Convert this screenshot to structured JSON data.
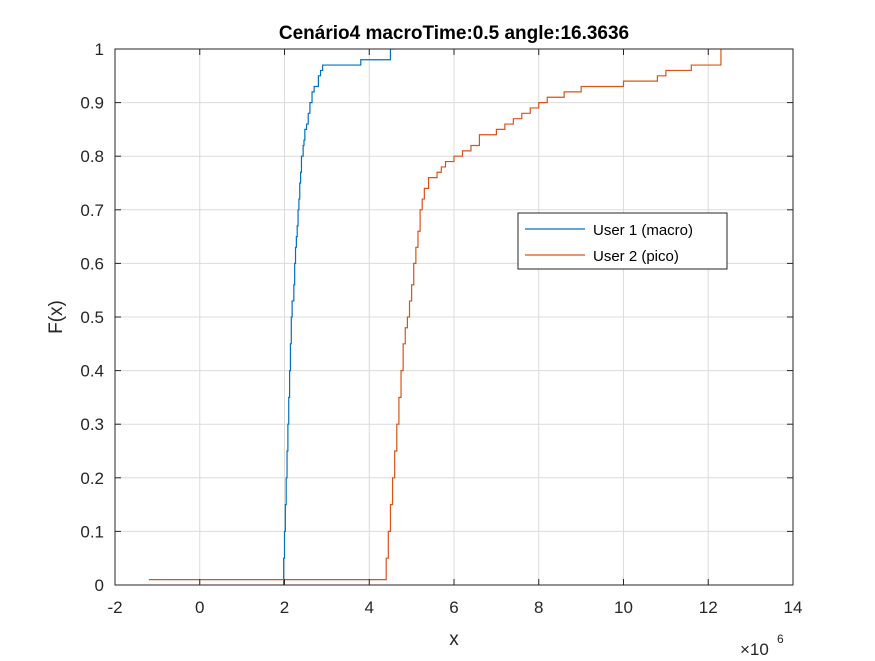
{
  "chart_data": {
    "type": "line",
    "title": "Cenário4 macroTime:0.5 angle:16.3636",
    "xlabel": "x",
    "ylabel": "F(x)",
    "x_multiplier_base": "×10",
    "x_multiplier_exp": "6",
    "xlim": [
      -2,
      14
    ],
    "ylim": [
      0,
      1
    ],
    "xticks": [
      -2,
      0,
      2,
      4,
      6,
      8,
      10,
      12,
      14
    ],
    "xtick_labels": [
      "-2",
      "0",
      "2",
      "4",
      "6",
      "8",
      "10",
      "12",
      "14"
    ],
    "yticks": [
      0,
      0.1,
      0.2,
      0.3,
      0.4,
      0.5,
      0.6,
      0.7,
      0.8,
      0.9,
      1
    ],
    "ytick_labels": [
      "0",
      "0.1",
      "0.2",
      "0.3",
      "0.4",
      "0.5",
      "0.6",
      "0.7",
      "0.8",
      "0.9",
      "1"
    ],
    "grid": true,
    "legend_position": "center-right",
    "series": [
      {
        "name": "User 1 (macro)",
        "color": "#0072BD",
        "x": [
          1.98,
          1.98,
          2.0,
          2.02,
          2.04,
          2.06,
          2.08,
          2.1,
          2.12,
          2.14,
          2.16,
          2.18,
          2.2,
          2.22,
          2.24,
          2.26,
          2.28,
          2.3,
          2.32,
          2.34,
          2.36,
          2.38,
          2.4,
          2.42,
          2.44,
          2.46,
          2.48,
          2.52,
          2.56,
          2.6,
          2.65,
          2.7,
          2.75,
          2.8,
          2.85,
          2.9,
          2.95,
          3.0,
          3.1,
          3.4,
          3.7,
          3.8,
          4.2,
          4.4,
          4.5,
          4.6
        ],
        "y": [
          0.0,
          0.05,
          0.1,
          0.15,
          0.2,
          0.25,
          0.3,
          0.35,
          0.4,
          0.45,
          0.5,
          0.53,
          0.53,
          0.56,
          0.6,
          0.63,
          0.65,
          0.67,
          0.7,
          0.72,
          0.75,
          0.77,
          0.8,
          0.8,
          0.82,
          0.83,
          0.85,
          0.86,
          0.88,
          0.9,
          0.92,
          0.93,
          0.93,
          0.95,
          0.96,
          0.97,
          0.97,
          0.97,
          0.97,
          0.97,
          0.97,
          0.98,
          0.98,
          0.98,
          1.0,
          1.0
        ]
      },
      {
        "name": "User 2 (pico)",
        "color": "#D95319",
        "x": [
          -1.2,
          4.35,
          4.4,
          4.45,
          4.5,
          4.55,
          4.6,
          4.65,
          4.7,
          4.75,
          4.8,
          4.85,
          4.9,
          4.95,
          5.0,
          5.05,
          5.1,
          5.15,
          5.2,
          5.25,
          5.3,
          5.4,
          5.5,
          5.6,
          5.7,
          5.8,
          5.9,
          6.0,
          6.2,
          6.4,
          6.6,
          6.8,
          7.0,
          7.2,
          7.4,
          7.6,
          7.8,
          8.0,
          8.2,
          8.6,
          9.0,
          9.5,
          10.0,
          10.4,
          10.8,
          11.0,
          11.2,
          11.6,
          12.0,
          12.2,
          12.3
        ],
        "y": [
          0.01,
          0.01,
          0.05,
          0.1,
          0.15,
          0.2,
          0.25,
          0.3,
          0.35,
          0.4,
          0.45,
          0.48,
          0.5,
          0.53,
          0.56,
          0.6,
          0.63,
          0.66,
          0.7,
          0.72,
          0.74,
          0.76,
          0.76,
          0.77,
          0.78,
          0.79,
          0.79,
          0.8,
          0.81,
          0.82,
          0.84,
          0.84,
          0.85,
          0.86,
          0.87,
          0.88,
          0.89,
          0.9,
          0.91,
          0.92,
          0.93,
          0.93,
          0.94,
          0.94,
          0.95,
          0.96,
          0.96,
          0.97,
          0.97,
          0.97,
          1.0
        ]
      }
    ]
  }
}
